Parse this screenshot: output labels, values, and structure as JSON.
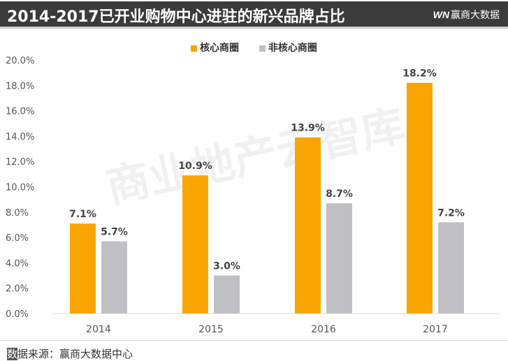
{
  "title": "2014-2017已开业购物中心进驻的新兴品牌占比",
  "logo": {
    "mark": "WN",
    "text": "赢商大数据"
  },
  "watermark": "商业地产云智库",
  "source": "数据来源：赢商大数据中心",
  "chart_data": {
    "type": "bar",
    "categories": [
      "2014",
      "2015",
      "2016",
      "2017"
    ],
    "series": [
      {
        "name": "核心商圈",
        "values": [
          7.1,
          10.9,
          13.9,
          18.2
        ],
        "color": "#F9A400"
      },
      {
        "name": "非核心商圈",
        "values": [
          5.7,
          3.0,
          8.7,
          7.2
        ],
        "color": "#C0BFC4"
      }
    ],
    "ylim": [
      0,
      20
    ],
    "yticks": [
      "0.0%",
      "2.0%",
      "4.0%",
      "6.0%",
      "8.0%",
      "10.0%",
      "12.0%",
      "14.0%",
      "16.0%",
      "18.0%",
      "20.0%"
    ],
    "legend": "top",
    "grid": false
  }
}
